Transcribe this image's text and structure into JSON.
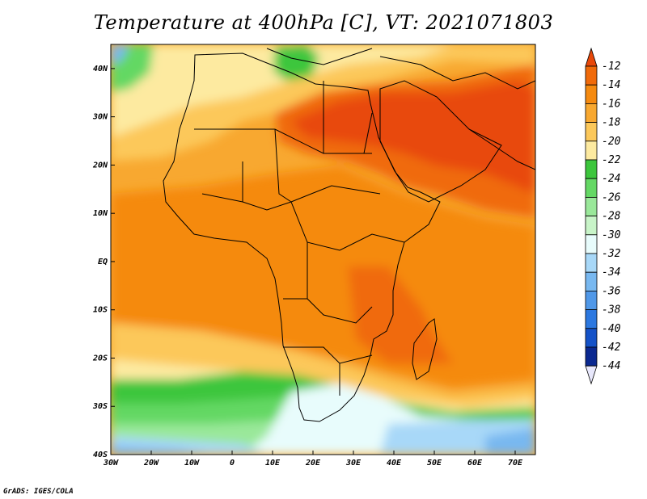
{
  "title": "Temperature at 400hPa [C], VT: 2021071803",
  "credit": "GrADS: IGES/COLA",
  "map": {
    "lon_range": [
      -30,
      75
    ],
    "lat_range": [
      -40,
      45
    ],
    "lon_ticks": [
      {
        "lon": -30,
        "label": "30W"
      },
      {
        "lon": -20,
        "label": "20W"
      },
      {
        "lon": -10,
        "label": "10W"
      },
      {
        "lon": 0,
        "label": "0"
      },
      {
        "lon": 10,
        "label": "10E"
      },
      {
        "lon": 20,
        "label": "20E"
      },
      {
        "lon": 30,
        "label": "30E"
      },
      {
        "lon": 40,
        "label": "40E"
      },
      {
        "lon": 50,
        "label": "50E"
      },
      {
        "lon": 60,
        "label": "60E"
      },
      {
        "lon": 70,
        "label": "70E"
      }
    ],
    "lat_ticks": [
      {
        "lat": 40,
        "label": "40N"
      },
      {
        "lat": 30,
        "label": "30N"
      },
      {
        "lat": 20,
        "label": "20N"
      },
      {
        "lat": 10,
        "label": "10N"
      },
      {
        "lat": 0,
        "label": "EQ"
      },
      {
        "lat": -10,
        "label": "10S"
      },
      {
        "lat": -20,
        "label": "20S"
      },
      {
        "lat": -30,
        "label": "30S"
      },
      {
        "lat": -40,
        "label": "40S"
      }
    ]
  },
  "colorbar": {
    "labels": [
      "-12",
      "-14",
      "-16",
      "-18",
      "-20",
      "-22",
      "-24",
      "-26",
      "-28",
      "-30",
      "-32",
      "-34",
      "-36",
      "-38",
      "-40",
      "-42",
      "-44"
    ],
    "colors": [
      "#e8480a",
      "#f06a0a",
      "#f58a10",
      "#f8a830",
      "#fcc85a",
      "#fdeaa0",
      "#3cc63c",
      "#64d864",
      "#9ae89a",
      "#c8f4c8",
      "#e8fcfc",
      "#a8d8f8",
      "#78b8f0",
      "#5098e8",
      "#2c78e0",
      "#1452c8",
      "#0a2890",
      "#081870"
    ]
  }
}
